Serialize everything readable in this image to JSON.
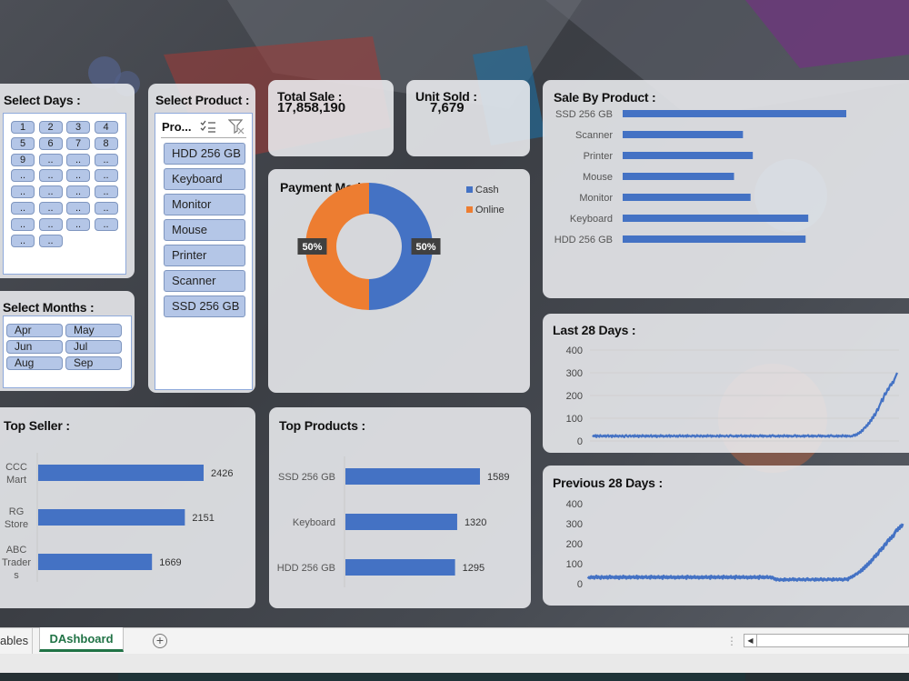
{
  "days": {
    "title": "Select Days :",
    "buttons": [
      "1",
      "2",
      "3",
      "4",
      "5",
      "6",
      "7",
      "8",
      "9",
      "..",
      "..",
      "..",
      "..",
      "..",
      "..",
      "..",
      "..",
      "..",
      "..",
      "..",
      "..",
      "..",
      "..",
      "..",
      "..",
      "..",
      "..",
      "..",
      "..",
      ".."
    ]
  },
  "months": {
    "title": "Select Months :",
    "buttons": [
      "Apr",
      "May",
      "Jun",
      "Jul",
      "Aug",
      "Sep"
    ]
  },
  "products": {
    "title": "Select Product :",
    "header": "Pro...",
    "items": [
      "HDD 256 GB",
      "Keyboard",
      "Monitor",
      "Mouse",
      "Printer",
      "Scanner",
      "SSD 256 GB"
    ]
  },
  "kpi": {
    "total_sale_label": "Total Sale :",
    "total_sale_value": "17,858,190",
    "unit_sold_label": "Unit Sold :",
    "unit_sold_value": "7,679"
  },
  "payment": {
    "title": "Payment Mode :",
    "legend": [
      "Cash",
      "Online"
    ],
    "labels": [
      "50%",
      "50%"
    ]
  },
  "sale_by_product": {
    "title": "Sale By Product :"
  },
  "last28": {
    "title": "Last 28 Days :"
  },
  "prev28": {
    "title": "Previous 28 Days :"
  },
  "top_seller": {
    "title": "Top Seller :"
  },
  "top_products": {
    "title": "Top Products :"
  },
  "tabs": {
    "partial": "ables",
    "active": "DAshboard",
    "add": "+"
  },
  "colors": {
    "blue": "#4472c4",
    "orange": "#ed7d31",
    "slicer": "#b4c6e7",
    "tab_green": "#217346"
  },
  "chart_data": [
    {
      "type": "pie",
      "title": "Payment Mode :",
      "categories": [
        "Cash",
        "Online"
      ],
      "values": [
        50,
        50
      ],
      "data_labels": [
        "50%",
        "50%"
      ],
      "legend": "top-right"
    },
    {
      "type": "bar",
      "title": "Sale By Product :",
      "categories": [
        "SSD 256 GB",
        "Scanner",
        "Printer",
        "Mouse",
        "Monitor",
        "Keyboard",
        "HDD 256 GB"
      ],
      "values": [
        1000,
        538,
        582,
        498,
        572,
        830,
        818
      ]
    },
    {
      "type": "line",
      "title": "Last 28 Days :",
      "yticks": [
        400,
        300,
        200,
        100,
        0
      ],
      "ylim": [
        0,
        400
      ],
      "grid": true,
      "values": [
        18,
        24,
        20,
        26,
        17,
        25,
        22,
        18,
        26,
        21,
        19,
        24,
        20,
        25,
        18,
        23,
        26,
        19,
        22,
        24,
        17,
        25,
        21,
        19,
        26,
        20,
        23,
        18,
        24,
        22,
        19,
        25,
        20,
        17,
        24,
        26,
        21,
        18,
        23,
        25,
        19,
        22,
        24,
        18,
        26,
        20,
        21,
        25,
        17,
        24,
        22,
        19,
        26,
        21,
        23,
        18,
        25,
        20,
        24,
        19,
        22,
        26,
        18,
        21,
        24,
        20,
        25,
        17,
        23,
        22,
        19,
        26,
        21,
        24,
        18,
        22,
        20,
        25,
        19,
        23,
        26,
        18,
        24,
        21,
        20,
        25,
        22,
        19,
        24,
        18,
        23,
        26,
        20,
        21,
        25,
        19,
        22,
        24,
        18,
        26,
        20,
        23,
        21,
        19,
        25,
        22,
        24,
        18,
        20,
        26,
        21,
        23,
        19,
        25,
        22,
        18,
        24,
        20,
        23,
        19,
        26,
        21,
        22,
        25,
        18,
        24,
        20,
        23,
        21,
        19,
        25,
        22,
        18,
        26,
        20,
        24,
        21,
        23,
        19,
        22,
        25,
        20,
        18,
        24,
        26,
        21,
        23,
        19,
        22,
        20,
        25,
        18,
        24,
        21,
        23,
        26,
        19,
        22,
        20,
        25,
        18,
        24,
        21,
        23,
        19,
        26,
        22,
        20,
        25,
        18,
        24,
        21,
        23,
        19,
        22,
        26,
        20,
        25,
        18,
        24,
        21,
        23,
        19,
        22,
        20,
        25,
        18,
        24,
        26,
        21,
        23,
        19,
        22,
        20,
        25,
        18,
        24,
        21,
        23,
        19,
        26,
        22,
        20,
        25,
        18,
        24,
        21,
        23,
        19,
        22,
        20,
        26,
        25,
        18,
        24,
        21,
        23,
        19,
        22,
        20,
        25,
        18,
        24,
        21,
        23,
        26,
        19,
        22,
        20,
        25,
        18,
        24,
        21,
        23,
        19,
        22,
        26,
        20,
        25,
        18,
        24,
        21,
        23,
        19,
        22,
        20,
        25,
        18,
        24,
        26,
        21,
        23,
        19,
        22,
        20,
        25,
        18,
        24,
        21,
        23,
        19,
        26,
        22,
        20,
        25,
        18,
        24,
        21,
        23,
        19,
        22,
        20,
        25,
        28,
        22,
        30,
        26,
        35,
        32,
        40,
        37,
        48,
        44,
        55,
        60,
        58,
        70,
        66,
        80,
        76,
        92,
        88,
        105,
        100,
        118,
        112,
        125,
        140,
        135,
        150,
        160,
        170,
        185,
        175,
        195,
        210,
        205,
        215,
        230,
        225,
        240,
        250,
        245,
        260,
        255,
        270,
        280,
        290,
        300
      ]
    },
    {
      "type": "line",
      "title": "Previous 28 Days :",
      "yticks": [
        400,
        300,
        200,
        100,
        0
      ],
      "ylim": [
        0,
        400
      ],
      "grid": false,
      "values": [
        25,
        32,
        28,
        36,
        30,
        34,
        27,
        33,
        38,
        29,
        35,
        31,
        26,
        37,
        33,
        28,
        34,
        30,
        36,
        27,
        32,
        38,
        29,
        35,
        31,
        33,
        28,
        37,
        30,
        34,
        26,
        36,
        32,
        29,
        38,
        31,
        35,
        27,
        33,
        30,
        37,
        28,
        34,
        32,
        36,
        29,
        31,
        38,
        27,
        35,
        33,
        30,
        36,
        28,
        34,
        32,
        37,
        29,
        31,
        35,
        27,
        38,
        33,
        30,
        36,
        28,
        34,
        31,
        37,
        29,
        32,
        35,
        26,
        38,
        33,
        30,
        36,
        28,
        34,
        31,
        37,
        29,
        32,
        35,
        27,
        33,
        30,
        36,
        28,
        34,
        31,
        37,
        29,
        32,
        35,
        26,
        38,
        33,
        30,
        36,
        28,
        34,
        31,
        37,
        29,
        32,
        35,
        27,
        33,
        30,
        36,
        28,
        34,
        31,
        37,
        29,
        32,
        35,
        26,
        38,
        33,
        30,
        36,
        28,
        34,
        31,
        37,
        29,
        32,
        35,
        27,
        38,
        33,
        30,
        36,
        28,
        34,
        31,
        37,
        29,
        32,
        35,
        26,
        38,
        33,
        30,
        36,
        28,
        34,
        31,
        37,
        29,
        32,
        35,
        27,
        33,
        30,
        36,
        28,
        34,
        31,
        37,
        29,
        32,
        35,
        26,
        38,
        33,
        30,
        36,
        28,
        34,
        31,
        37,
        29,
        32,
        35,
        27,
        33,
        30,
        22,
        26,
        18,
        24,
        20,
        17,
        23,
        19,
        21,
        16,
        25,
        18,
        22,
        20,
        17,
        24,
        19,
        21,
        26,
        18,
        23,
        20,
        17,
        22,
        25,
        19,
        21,
        18,
        24,
        20,
        17,
        23,
        26,
        19,
        21,
        18,
        22,
        24,
        20,
        17,
        25,
        19,
        23,
        18,
        21,
        26,
        20,
        17,
        24,
        22,
        19,
        18,
        25,
        21,
        23,
        20,
        17,
        26,
        19,
        22,
        24,
        18,
        21,
        25,
        20,
        23,
        17,
        19,
        26,
        22,
        24,
        18,
        30,
        28,
        35,
        32,
        40,
        38,
        45,
        50,
        48,
        55,
        60,
        58,
        70,
        65,
        80,
        75,
        90,
        85,
        100,
        95,
        110,
        105,
        120,
        118,
        130,
        140,
        135,
        150,
        145,
        160,
        170,
        165,
        180,
        175,
        190,
        200,
        195,
        210,
        220,
        215,
        230,
        225,
        240,
        235,
        250,
        260,
        270,
        265,
        280,
        275,
        290,
        285,
        300
      ]
    },
    {
      "type": "bar",
      "title": "Top Seller :",
      "categories": [
        "CCC Mart",
        "RG Store",
        "ABC Traders"
      ],
      "category_labels": [
        [
          "CCC",
          "Mart"
        ],
        [
          "RG",
          "Store"
        ],
        [
          "ABC",
          "Trader",
          "s"
        ]
      ],
      "values": [
        2426,
        2151,
        1669
      ]
    },
    {
      "type": "bar",
      "title": "Top Products :",
      "categories": [
        "SSD 256 GB",
        "Keyboard",
        "HDD 256 GB"
      ],
      "values": [
        1589,
        1320,
        1295
      ]
    }
  ]
}
